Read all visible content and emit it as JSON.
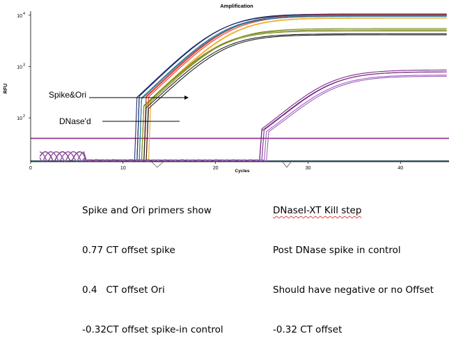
{
  "chart_data": {
    "type": "line",
    "title": "Amplification",
    "xlabel": "Cycles",
    "ylabel": "RFU",
    "x_range": [
      0,
      46
    ],
    "y_scale": "log",
    "y_range": [
      14,
      12000
    ],
    "x_ticks": [
      "0",
      "10",
      "20",
      "30",
      "40"
    ],
    "x_tick_values": [
      0,
      10,
      20,
      30,
      40
    ],
    "y_ticks": [
      {
        "value": 10000,
        "base": "10",
        "exp": "4"
      },
      {
        "value": 1000,
        "base": "10",
        "exp": "3"
      },
      {
        "value": 100,
        "base": "10",
        "exp": "2"
      }
    ],
    "grid": false,
    "thresholds": [
      {
        "value": 40,
        "color": "#8a2a8a"
      },
      {
        "value": 14.5,
        "color": "#1e4a5a"
      }
    ],
    "groups": [
      {
        "label": "Spike&Ori",
        "color": "#1f2f6e",
        "plateau": 10500,
        "ct": 15.6,
        "count": 3
      },
      {
        "label": "",
        "color": "#e23a2a",
        "plateau": 9800,
        "ct": 16.5,
        "count": 3
      },
      {
        "label": "",
        "color": "#f0b030",
        "plateau": 9200,
        "ct": 16.9,
        "count": 2
      },
      {
        "label": "",
        "color": "#2a7a9a",
        "plateau": 9900,
        "ct": 15.9,
        "count": 2
      },
      {
        "label": "DNase'd",
        "color": "#7a8a1a",
        "plateau": 5200,
        "ct": 16.2,
        "count": 3
      },
      {
        "label": "",
        "color": "#222222",
        "plateau": 4300,
        "ct": 16.3,
        "count": 2
      },
      {
        "label": "",
        "color": "#7a2a8a",
        "plateau": 800,
        "ct": 29.0,
        "count": 3
      },
      {
        "label": "",
        "color": "#a060c0",
        "plateau": 650,
        "ct": 29.5,
        "count": 2
      }
    ],
    "annotations": [
      {
        "text": "Spike&Ori",
        "target": "Spike&Ori curves"
      },
      {
        "text": "DNase'd",
        "target": "DNase'd curves"
      }
    ]
  },
  "notes": {
    "left": {
      "title": "Spike and Ori primers show",
      "lines": [
        "0.77 CT offset spike",
        "0.4   CT offset Ori",
        "-0.32CT offset spike-in control"
      ]
    },
    "right": {
      "title": "DNaseI-XT Kill step",
      "lines": [
        "Post DNase spike in control",
        "Should have negative or no Offset",
        "-0.32 CT offset"
      ]
    }
  }
}
